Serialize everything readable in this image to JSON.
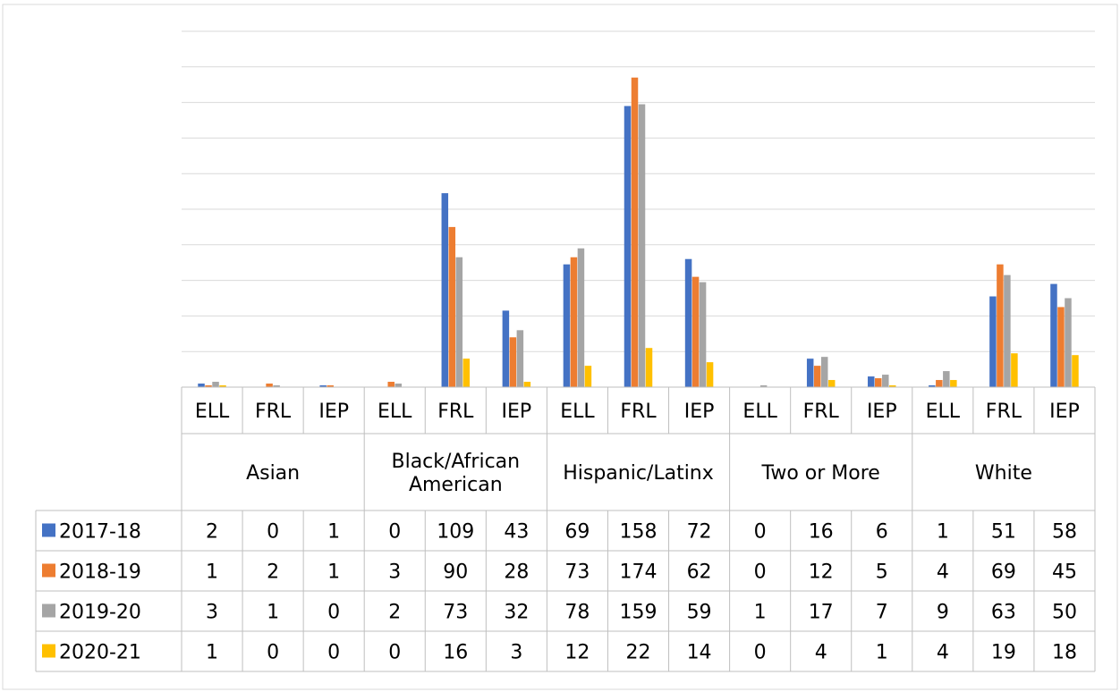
{
  "chart_data": {
    "type": "bar",
    "title": "",
    "xlabel": "",
    "ylabel": "",
    "ylim": [
      0,
      200
    ],
    "grid": true,
    "legend_position": "data-table-left",
    "groups": [
      {
        "label": "Asian",
        "categories": [
          "ELL",
          "FRL",
          "IEP"
        ]
      },
      {
        "label": "Black/African American",
        "categories": [
          "ELL",
          "FRL",
          "IEP"
        ]
      },
      {
        "label": "Hispanic/Latinx",
        "categories": [
          "ELL",
          "FRL",
          "IEP"
        ]
      },
      {
        "label": "Two or More",
        "categories": [
          "ELL",
          "FRL",
          "IEP"
        ]
      },
      {
        "label": "White",
        "categories": [
          "ELL",
          "FRL",
          "IEP"
        ]
      }
    ],
    "series": [
      {
        "name": "2017-18",
        "color": "#4472C4",
        "values": [
          2,
          0,
          1,
          0,
          109,
          43,
          69,
          158,
          72,
          0,
          16,
          6,
          1,
          51,
          58
        ]
      },
      {
        "name": "2018-19",
        "color": "#ED7D31",
        "values": [
          1,
          2,
          1,
          3,
          90,
          28,
          73,
          174,
          62,
          0,
          12,
          5,
          4,
          69,
          45
        ]
      },
      {
        "name": "2019-20",
        "color": "#A5A5A5",
        "values": [
          3,
          1,
          0,
          2,
          73,
          32,
          78,
          159,
          59,
          1,
          17,
          7,
          9,
          63,
          50
        ]
      },
      {
        "name": "2020-21",
        "color": "#FFC000",
        "values": [
          1,
          0,
          0,
          0,
          16,
          3,
          12,
          22,
          14,
          0,
          4,
          1,
          4,
          19,
          18
        ]
      }
    ]
  }
}
